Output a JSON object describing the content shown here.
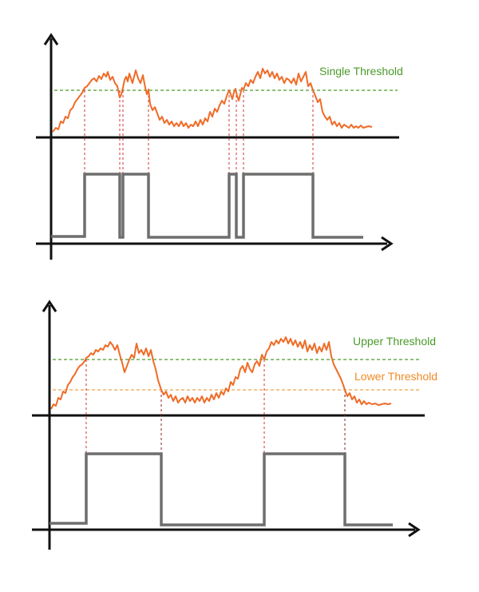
{
  "diagrams": [
    {
      "id": "single",
      "labels": [
        {
          "text": "Single Threshold",
          "color": "#4a9a2a"
        }
      ]
    },
    {
      "id": "hysteresis",
      "labels": [
        {
          "text": "Upper Threshold",
          "color": "#4a9a2a"
        },
        {
          "text": "Lower Threshold",
          "color": "#f08a24"
        }
      ]
    }
  ],
  "colors": {
    "axis": "#111111",
    "signal": "#ef6c28",
    "output": "#6e6e6e",
    "upper_threshold_line": "#4a9a2a",
    "lower_threshold_line": "#f0a048",
    "crossing_marker": "#d03030"
  }
}
